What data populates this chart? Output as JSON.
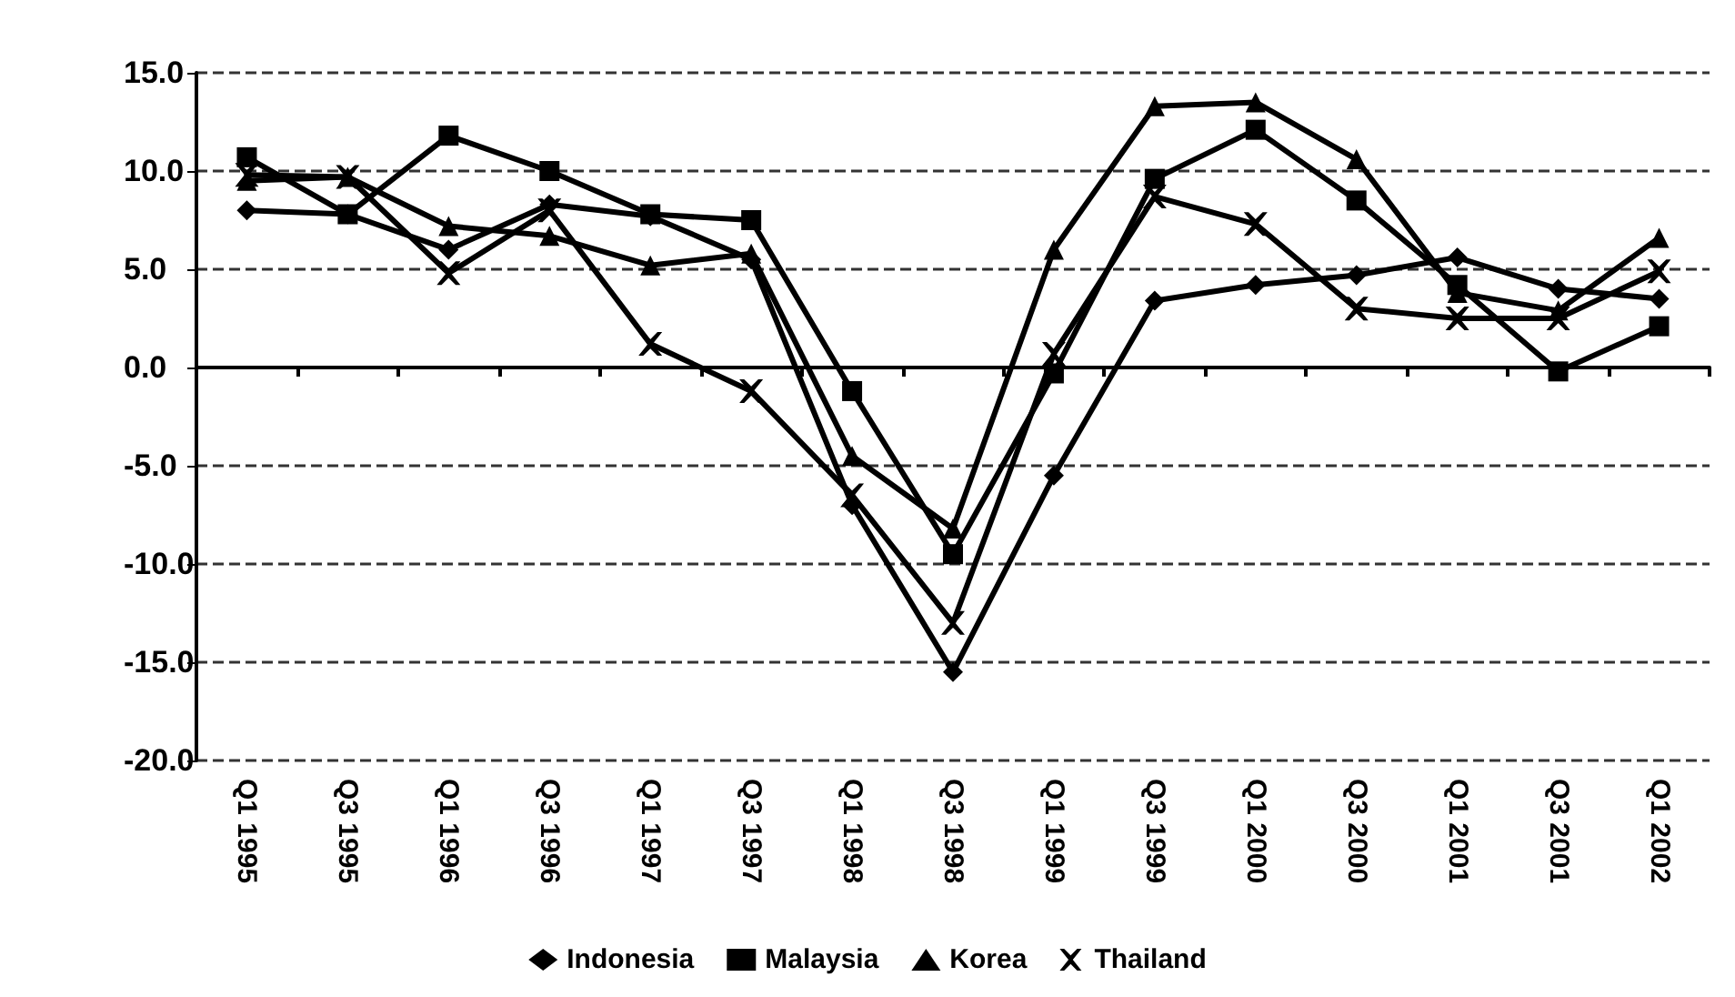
{
  "chart_data": {
    "type": "line",
    "categories": [
      "Q1 1995",
      "Q3 1995",
      "Q1 1996",
      "Q3 1996",
      "Q1 1997",
      "Q3 1997",
      "Q1 1998",
      "Q3 1998",
      "Q1 1999",
      "Q3 1999",
      "Q1 2000",
      "Q3 2000",
      "Q1 2001",
      "Q3 2001",
      "Q1 2002"
    ],
    "series": [
      {
        "name": "Indonesia",
        "color": "#000000",
        "marker": "diamond",
        "values": [
          8.0,
          7.8,
          6.0,
          8.3,
          7.7,
          5.5,
          -7.0,
          -15.5,
          -5.5,
          3.4,
          4.2,
          4.7,
          5.6,
          4.0,
          3.5
        ]
      },
      {
        "name": "Malaysia",
        "color": "#000000",
        "marker": "square",
        "values": [
          10.7,
          7.8,
          11.8,
          10.0,
          7.8,
          7.5,
          -1.2,
          -9.5,
          -0.3,
          9.6,
          12.1,
          8.5,
          4.2,
          -0.2,
          2.1
        ]
      },
      {
        "name": "Korea",
        "color": "#000000",
        "marker": "triangle",
        "values": [
          9.5,
          9.7,
          7.2,
          6.7,
          5.2,
          5.8,
          -4.5,
          -8.2,
          6.0,
          13.3,
          13.5,
          10.6,
          3.8,
          2.9,
          6.6
        ]
      },
      {
        "name": "Thailand",
        "color": "#000000",
        "marker": "cross",
        "values": [
          9.8,
          9.7,
          4.8,
          8.0,
          1.2,
          -1.2,
          -6.5,
          -13.0,
          0.7,
          8.7,
          7.3,
          3.0,
          2.5,
          2.5,
          4.9
        ]
      }
    ],
    "ylim": [
      -20,
      15
    ],
    "yticks": [
      {
        "value": -20,
        "label": "-20.0"
      },
      {
        "value": -15,
        "label": "-15.0"
      },
      {
        "value": -10,
        "label": "-10.0"
      },
      {
        "value": -5,
        "label": "-5.0"
      },
      {
        "value": 0,
        "label": "0.0"
      },
      {
        "value": 5,
        "label": "5.0"
      },
      {
        "value": 10,
        "label": "10.0"
      },
      {
        "value": 15,
        "label": "15.0"
      }
    ],
    "grid": "y",
    "legend": "bottom",
    "line_style": "solid"
  }
}
